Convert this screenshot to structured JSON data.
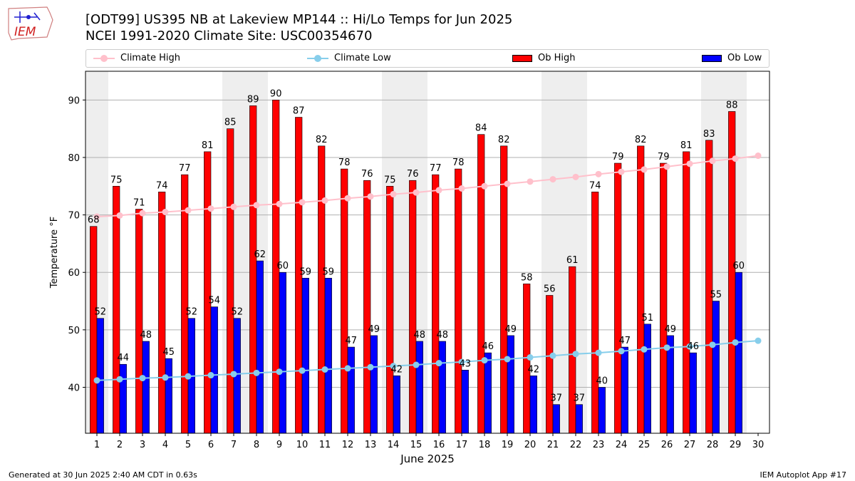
{
  "header": {
    "title_line1": "[ODT99] US395 NB at Lakeview MP144  :: Hi/Lo Temps for Jun 2025",
    "title_line2": "NCEI 1991-2020 Climate Site: USC00354670",
    "logo_text": "IEM"
  },
  "footer": {
    "generated": "Generated at 30 Jun 2025 2:40 AM CDT in 0.63s",
    "app": "IEM Autoplot App #17"
  },
  "colors": {
    "ob_high": "#ff0000",
    "ob_low": "#0000ff",
    "climate_high": "#ffc0cb",
    "climate_low": "#87ceeb",
    "weekend_band": "#eeeeee",
    "grid": "#b0b0b0"
  },
  "chart_data": {
    "type": "bar",
    "title": "[ODT99] US395 NB at Lakeview MP144  :: Hi/Lo Temps for Jun 2025",
    "subtitle": "NCEI 1991-2020 Climate Site: USC00354670",
    "xlabel": "June 2025",
    "ylabel": "Temperature °F",
    "ylim": [
      32,
      95
    ],
    "yticks": [
      40,
      50,
      60,
      70,
      80,
      90
    ],
    "grid": true,
    "legend_position": "top",
    "x": [
      1,
      2,
      3,
      4,
      5,
      6,
      7,
      8,
      9,
      10,
      11,
      12,
      13,
      14,
      15,
      16,
      17,
      18,
      19,
      20,
      21,
      22,
      23,
      24,
      25,
      26,
      27,
      28,
      29,
      30
    ],
    "weekend_bands": [
      [
        1,
        1
      ],
      [
        7,
        8
      ],
      [
        14,
        15
      ],
      [
        21,
        22
      ],
      [
        28,
        29
      ]
    ],
    "series": [
      {
        "name": "Climate High",
        "kind": "line",
        "values": [
          69.7,
          69.9,
          70.3,
          70.5,
          70.8,
          71.1,
          71.4,
          71.7,
          71.9,
          72.2,
          72.5,
          72.9,
          73.2,
          73.6,
          73.9,
          74.3,
          74.6,
          75.0,
          75.4,
          75.8,
          76.2,
          76.6,
          77.1,
          77.5,
          77.9,
          78.4,
          78.9,
          79.4,
          79.8,
          80.3
        ]
      },
      {
        "name": "Climate Low",
        "kind": "line",
        "values": [
          41.2,
          41.4,
          41.6,
          41.7,
          41.9,
          42.1,
          42.3,
          42.5,
          42.7,
          42.9,
          43.1,
          43.3,
          43.5,
          43.7,
          43.9,
          44.2,
          44.4,
          44.7,
          44.9,
          45.2,
          45.5,
          45.8,
          46.0,
          46.3,
          46.6,
          46.9,
          47.1,
          47.4,
          47.8,
          48.1
        ]
      },
      {
        "name": "Ob High",
        "kind": "bar",
        "values": [
          68,
          75,
          71,
          74,
          77,
          81,
          85,
          89,
          90,
          87,
          82,
          78,
          76,
          75,
          76,
          77,
          78,
          84,
          82,
          58,
          56,
          61,
          74,
          79,
          82,
          79,
          81,
          83,
          88,
          null
        ]
      },
      {
        "name": "Ob Low",
        "kind": "bar",
        "values": [
          52,
          44,
          48,
          45,
          52,
          54,
          52,
          62,
          60,
          59,
          59,
          47,
          49,
          42,
          48,
          48,
          43,
          46,
          49,
          42,
          37,
          37,
          40,
          47,
          51,
          49,
          46,
          55,
          60,
          null
        ]
      }
    ]
  }
}
